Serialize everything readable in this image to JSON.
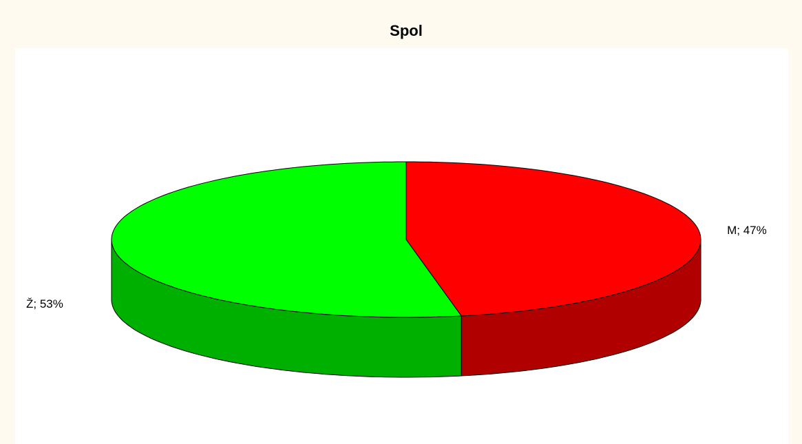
{
  "chart_data": {
    "type": "pie",
    "title": "Spol",
    "categories": [
      "M",
      "Ž"
    ],
    "values": [
      47,
      53
    ],
    "value_labels": [
      "M; 47%",
      "Ž; 53%"
    ],
    "colors": [
      "#ff0000",
      "#00ff00"
    ]
  }
}
